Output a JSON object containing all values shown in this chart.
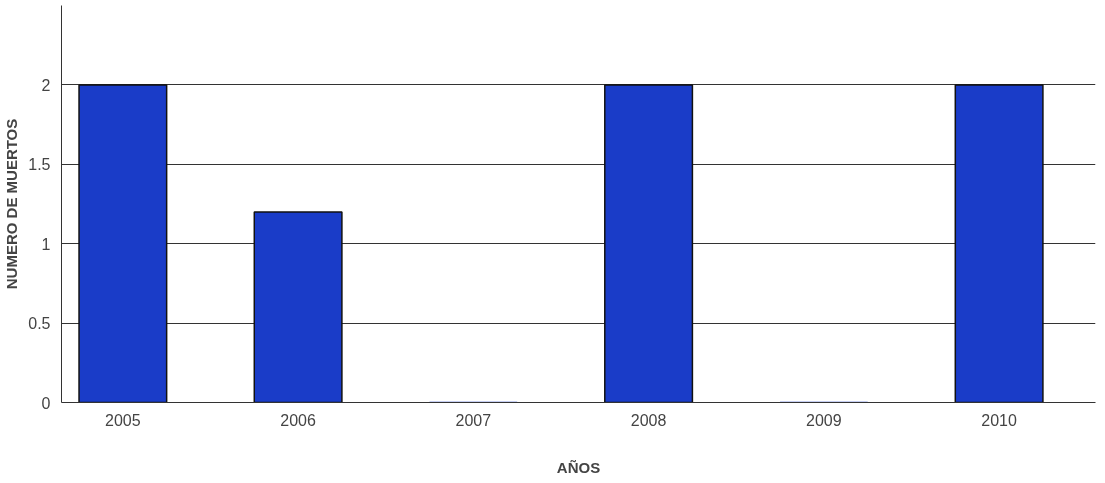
{
  "chart_data": {
    "type": "bar",
    "xlabel": "AÑOS",
    "ylabel": "NUMERO DE MUERTOS",
    "categories": [
      "2005",
      "2006",
      "2007",
      "2008",
      "2009",
      "2010"
    ],
    "values": [
      2,
      1.2,
      0,
      2,
      0,
      2
    ],
    "color": "#1a3cc8",
    "ylim": [
      0,
      2.5
    ],
    "yticks": [
      0,
      0.5,
      1,
      1.5,
      2
    ],
    "grid": "y"
  }
}
